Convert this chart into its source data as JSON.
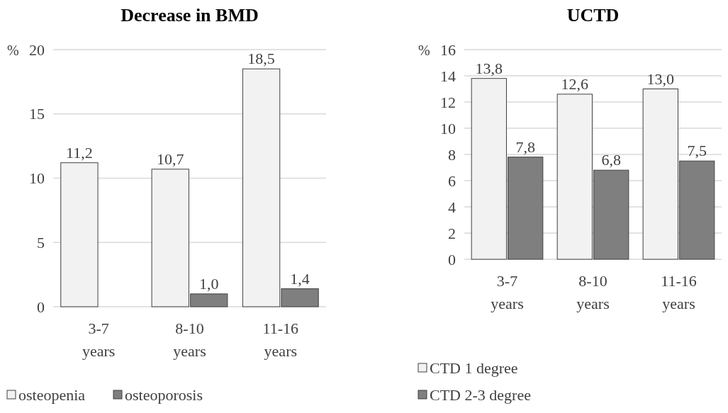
{
  "chart_data": [
    {
      "type": "bar",
      "title": "Decrease in BMD",
      "ylabel": "%",
      "categories": [
        "3-7 years",
        "8-10 years",
        "11-16 years"
      ],
      "ylim": [
        0,
        20
      ],
      "yticks": [
        0,
        5,
        10,
        15,
        20
      ],
      "grid": "y",
      "legend": "bottom",
      "series": [
        {
          "name": "osteopenia",
          "color": "#f2f2f2",
          "values": [
            11.2,
            10.7,
            18.5
          ],
          "value_labels": [
            "11,2",
            "10,7",
            "18,5"
          ]
        },
        {
          "name": "osteoporosis",
          "color": "#7f7f7f",
          "values": [
            null,
            1.0,
            1.4
          ],
          "value_labels": [
            null,
            "1,0",
            "1,4"
          ]
        }
      ]
    },
    {
      "type": "bar",
      "title": "UCTD",
      "ylabel": "%",
      "categories": [
        "3-7 years",
        "8-10 years",
        "11-16 years"
      ],
      "ylim": [
        0,
        16
      ],
      "yticks": [
        0,
        2,
        4,
        6,
        8,
        10,
        12,
        14,
        16
      ],
      "grid": "y",
      "legend": "bottom",
      "series": [
        {
          "name": "CTD 1 degree",
          "color": "#f2f2f2",
          "values": [
            13.8,
            12.6,
            13.0
          ],
          "value_labels": [
            "13,8",
            "12,6",
            "13,0"
          ]
        },
        {
          "name": "CTD 2-3 degree",
          "color": "#7f7f7f",
          "values": [
            7.8,
            6.8,
            7.5
          ],
          "value_labels": [
            "7,8",
            "6,8",
            "7,5"
          ]
        }
      ]
    }
  ]
}
